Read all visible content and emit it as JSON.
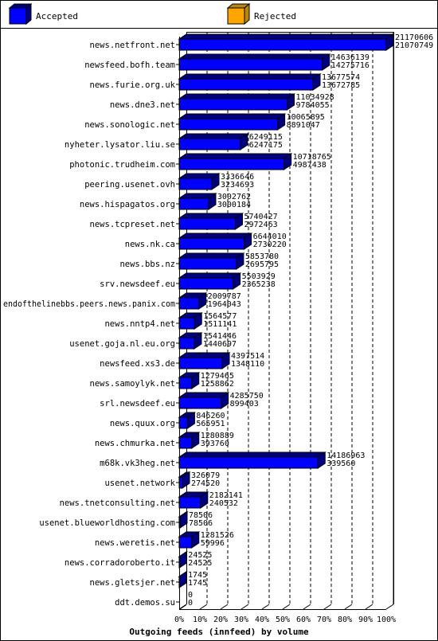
{
  "chart_data": {
    "type": "bar",
    "title": "Outgoing feeds (innfeed) by volume",
    "xlabel": "",
    "ylabel": "",
    "stacked": false,
    "legend_position": "top",
    "series": [
      {
        "name": "Accepted",
        "color": "#0000ff",
        "values": [
          21170606,
          14636139,
          13677574,
          11034928,
          10065895,
          6249115,
          10718765,
          3336646,
          3002762,
          5740427,
          6644010,
          5853780,
          5503929,
          2009787,
          1564577,
          1541446,
          4397514,
          1279465,
          4285750,
          846260,
          1280889,
          14186963,
          326079,
          2182141,
          78506,
          1281526,
          24525,
          1745,
          0
        ]
      },
      {
        "name": "Rejected",
        "color": "#ffa500",
        "values": [
          21070749,
          14275716,
          13672785,
          9784055,
          8891047,
          6247175,
          4987438,
          3234693,
          3000184,
          2972463,
          2730220,
          2695795,
          2365238,
          1964043,
          1511141,
          1440697,
          1348110,
          1258862,
          899403,
          565951,
          393760,
          339560,
          274520,
          240532,
          78506,
          59996,
          24525,
          1745,
          0
        ]
      }
    ],
    "categories": [
      "news.netfront.net",
      "newsfeed.bofh.team",
      "news.furie.org.uk",
      "news.dne3.net",
      "news.sonologic.net",
      "nyheter.lysator.liu.se",
      "photonic.trudheim.com",
      "peering.usenet.ovh",
      "news.hispagatos.org",
      "news.tcpreset.net",
      "news.nk.ca",
      "news.bbs.nz",
      "srv.newsdeef.eu",
      "endofthelinebbs.peers.news.panix.com",
      "news.nntp4.net",
      "usenet.goja.nl.eu.org",
      "newsfeed.xs3.de",
      "news.samoylyk.net",
      "srl.newsdeef.eu",
      "news.quux.org",
      "news.chmurka.net",
      "m68k.vk3heg.net",
      "usenet.network",
      "news.tnetconsulting.net",
      "usenet.blueworldhosting.com",
      "news.weretis.net",
      "news.corradoroberto.it",
      "news.gletsjer.net",
      "ddt.demos.su"
    ],
    "label_pairs": [
      [
        "21170606",
        "21070749"
      ],
      [
        "14636139",
        "14275716"
      ],
      [
        "13677574",
        "13672785"
      ],
      [
        "11034928",
        "9784055"
      ],
      [
        "10065895",
        "8891047"
      ],
      [
        "6249115",
        "6247175"
      ],
      [
        "10718765",
        "4987438"
      ],
      [
        "3336646",
        "3234693"
      ],
      [
        "3002762",
        "3000184"
      ],
      [
        "5740427",
        "2972463"
      ],
      [
        "6644010",
        "2730220"
      ],
      [
        "5853780",
        "2695795"
      ],
      [
        "5503929",
        "2365238"
      ],
      [
        "2009787",
        "1964043"
      ],
      [
        "1564577",
        "1511141"
      ],
      [
        "1541446",
        "1440697"
      ],
      [
        "4397514",
        "1348110"
      ],
      [
        "1279465",
        "1258862"
      ],
      [
        "4285750",
        "899403"
      ],
      [
        "846260",
        "565951"
      ],
      [
        "1280889",
        "393760"
      ],
      [
        "14186963",
        "339560"
      ],
      [
        "326079",
        "274520"
      ],
      [
        "2182141",
        "240532"
      ],
      [
        "78506",
        "78506"
      ],
      [
        "1281526",
        "59996"
      ],
      [
        "24525",
        "24525"
      ],
      [
        "1745",
        "1745"
      ],
      [
        "0",
        "0"
      ]
    ],
    "x_ticks": [
      "0%",
      "10%",
      "20%",
      "30%",
      "40%",
      "50%",
      "60%",
      "70%",
      "80%",
      "90%",
      "100%"
    ],
    "xlim": [
      0,
      100
    ],
    "grid": true
  }
}
